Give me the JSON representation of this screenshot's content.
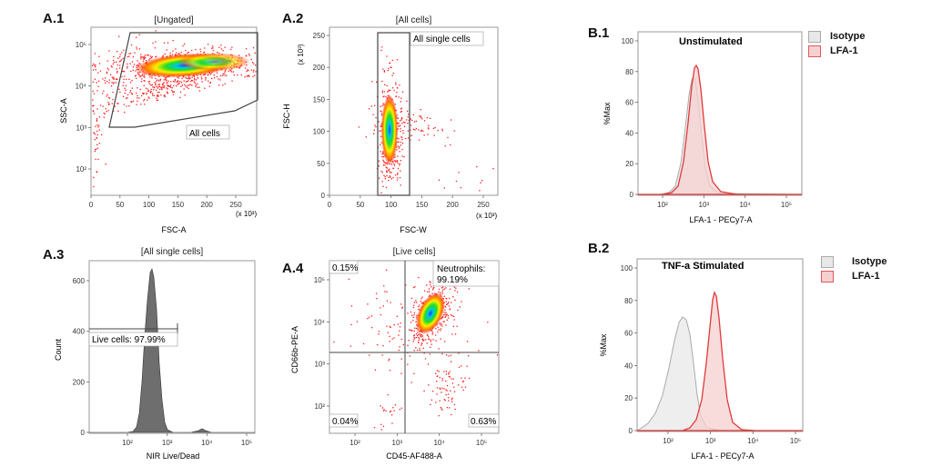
{
  "panels": {
    "a1": {
      "label": "A.1",
      "title": "[Ungated]",
      "xlabel": "FSC-A",
      "ylabel": "SSC-A",
      "xticks": [
        "0",
        "50",
        "100",
        "150",
        "200",
        "250"
      ],
      "xmult": "(x 10³)",
      "yticks": [
        "10⁵",
        "10⁴",
        "10³",
        "10²"
      ],
      "gate_label": "All cells"
    },
    "a2": {
      "label": "A.2",
      "title": "[All cells]",
      "xlabel": "FSC-W",
      "ylabel": "FSC-H",
      "xticks": [
        "0",
        "50",
        "100",
        "150",
        "200",
        "250"
      ],
      "xmult": "(x 10³)",
      "yticks": [
        "250",
        "200",
        "150",
        "100",
        "50",
        "0"
      ],
      "ymult": "(x 10³)",
      "gate_label": "All single cells"
    },
    "a3": {
      "label": "A.3",
      "title": "[All single cells]",
      "xlabel": "NIR Live/Dead",
      "ylabel": "Count",
      "yticks": [
        "600",
        "400",
        "200",
        "0"
      ],
      "xticks": [
        "10²",
        "10³",
        "10⁴",
        "10⁵"
      ],
      "gate_label": "Live cells: 97.99%"
    },
    "a4": {
      "label": "A.4",
      "title": "[Live cells]",
      "xlabel": "CD45-AF488-A",
      "ylabel": "CD66b-PE-A",
      "xticks": [
        "10²",
        "10³",
        "10⁴",
        "10⁵"
      ],
      "yticks": [
        "10⁵",
        "10⁴",
        "10³",
        "10²"
      ],
      "q_ul": "0.15%",
      "q_ur": "Neutrophils:\n99.19%",
      "q_ll": "0.04%",
      "q_lr": "0.63%"
    },
    "b1": {
      "label": "B.1",
      "plot_title": "Unstimulated",
      "xlabel": "LFA-1 - PECy7-A",
      "ylabel": "%Max",
      "yticks": [
        "100",
        "80",
        "60",
        "40",
        "20",
        "0"
      ],
      "xticks": [
        "10²",
        "10³",
        "10⁴",
        "10⁵"
      ]
    },
    "b2": {
      "label": "B.2",
      "plot_title": "TNF-a Stimulated",
      "xlabel": "LFA-1 - PECy7-A",
      "ylabel": "%Max",
      "yticks": [
        "100",
        "80",
        "60",
        "40",
        "20",
        "0"
      ],
      "xticks": [
        "10²",
        "10³",
        "10⁴",
        "10⁵"
      ]
    }
  },
  "legend": {
    "isotype": "Isotype",
    "lfa1": "LFA-1",
    "isotype_color": "#e8e8e8",
    "lfa1_color": "#f6d0d0"
  },
  "chart_data": [
    {
      "type": "scatter",
      "title": "[Ungated]",
      "xlabel": "FSC-A",
      "ylabel": "SSC-A",
      "ylog": true,
      "populations": [
        {
          "x": 150,
          "y": 28000
        },
        {
          "x": 130,
          "y": 4500
        }
      ]
    },
    {
      "type": "scatter",
      "title": "[All cells]",
      "xlabel": "FSC-W",
      "ylabel": "FSC-H",
      "xlim": [
        0,
        260
      ],
      "ylim": [
        0,
        260
      ],
      "populations": [
        {
          "x": 95,
          "y": 115
        }
      ]
    },
    {
      "type": "area",
      "title": "[All single cells]",
      "xlabel": "NIR Live/Dead",
      "ylabel": "Count",
      "ylim": [
        0,
        650
      ],
      "peak": {
        "x": 400,
        "y": 640
      }
    },
    {
      "type": "scatter",
      "title": "[Live cells]",
      "xlabel": "CD45-AF488-A",
      "ylabel": "CD66b-PE-A",
      "quadrants": {
        "UL": "0.15%",
        "UR": "99.19%",
        "LL": "0.04%",
        "LR": "0.63%"
      }
    },
    {
      "type": "area",
      "title": "Unstimulated",
      "xlabel": "LFA-1 - PECy7-A",
      "ylabel": "%Max",
      "ylim": [
        0,
        100
      ],
      "series": [
        {
          "name": "Isotype",
          "peak_x": 560,
          "peak_y": 80
        },
        {
          "name": "LFA-1",
          "peak_x": 620,
          "peak_y": 85
        }
      ]
    },
    {
      "type": "area",
      "title": "TNF-a Stimulated",
      "xlabel": "LFA-1 - PECy7-A",
      "ylabel": "%Max",
      "ylim": [
        0,
        100
      ],
      "series": [
        {
          "name": "Isotype",
          "peak_x": 300,
          "peak_y": 70
        },
        {
          "name": "LFA-1",
          "peak_x": 1400,
          "peak_y": 85
        }
      ]
    }
  ]
}
